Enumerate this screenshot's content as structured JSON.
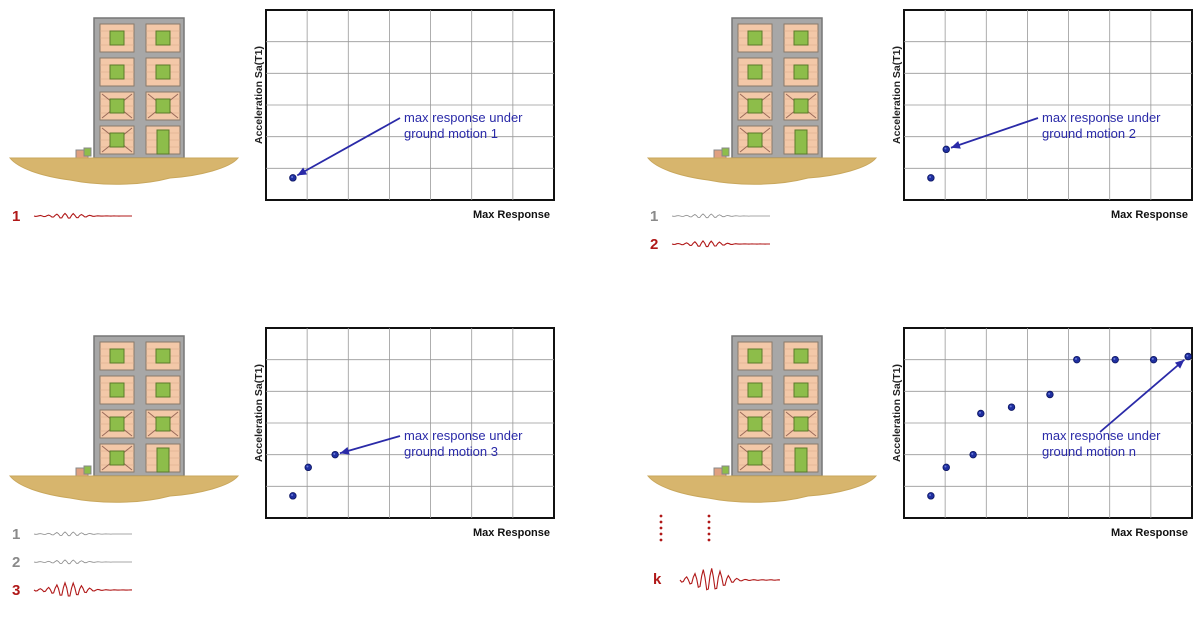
{
  "panels": [
    {
      "motions": [
        {
          "label": "1",
          "active": true
        }
      ],
      "ylabel": "Acceleration Sa(T1)",
      "xlabel": "Max Response",
      "annotation": [
        "max response under",
        "ground motion 1"
      ],
      "points": [
        [
          0.7,
          0.7
        ]
      ],
      "arrow_to_point": 0
    },
    {
      "motions": [
        {
          "label": "1",
          "active": false
        },
        {
          "label": "2",
          "active": true
        }
      ],
      "ylabel": "Acceleration Sa(T1)",
      "xlabel": "Max Response",
      "annotation": [
        "max response under",
        "ground motion 2"
      ],
      "points": [
        [
          0.7,
          0.7
        ],
        [
          1.1,
          1.6
        ]
      ],
      "arrow_to_point": 1
    },
    {
      "motions": [
        {
          "label": "1",
          "active": false
        },
        {
          "label": "2",
          "active": false
        },
        {
          "label": "3",
          "active": true
        }
      ],
      "ylabel": "Acceleration Sa(T1)",
      "xlabel": "Max Response",
      "annotation": [
        "max response under",
        "ground motion 3"
      ],
      "points": [
        [
          0.7,
          0.7
        ],
        [
          1.1,
          1.6
        ],
        [
          1.8,
          2.0
        ]
      ],
      "arrow_to_point": 2
    },
    {
      "motions": [
        {
          "label": "k",
          "active": true,
          "ellipsis": true
        }
      ],
      "ylabel": "Acceleration Sa(T1)",
      "xlabel": "Max Response",
      "annotation": [
        "max response under",
        "ground motion n"
      ],
      "points": [
        [
          0.7,
          0.7
        ],
        [
          1.1,
          1.6
        ],
        [
          1.8,
          2.0
        ],
        [
          2.0,
          3.3
        ],
        [
          2.8,
          3.5
        ],
        [
          3.8,
          3.9
        ],
        [
          4.5,
          5.0
        ],
        [
          5.5,
          5.0
        ],
        [
          6.5,
          5.0
        ],
        [
          7.4,
          5.1
        ]
      ],
      "arrow_to_point": 9
    }
  ],
  "axes": {
    "xlim": [
      0,
      7.5
    ],
    "ylim": [
      0,
      6
    ]
  },
  "colors": {
    "active_motion": "#b01818",
    "inactive_motion": "#8a8a8a",
    "point": "#1f2fa0",
    "arrow": "#2a2aa8",
    "building": "#a7a7a7",
    "window": "#8dbd4a",
    "infill": "#f3c8a8",
    "ground": "#d7b56d"
  },
  "icons": {
    "building": "building-icon",
    "ground": "ground-icon",
    "wave": "seismogram-icon"
  }
}
